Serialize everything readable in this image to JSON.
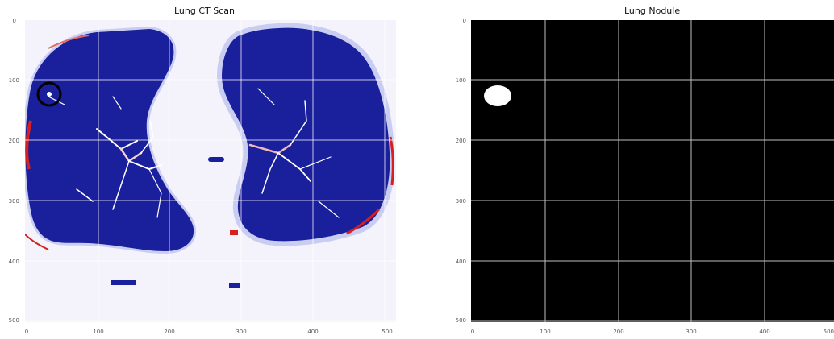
{
  "panels": [
    {
      "title": "Lung CT Scan",
      "image": "lung-ct-slice",
      "x_ticks": [
        "0",
        "100",
        "200",
        "300",
        "400",
        "500"
      ],
      "y_ticks": [
        "0",
        "100",
        "200",
        "300",
        "400",
        "500"
      ],
      "nodule_marker": {
        "x": 37,
        "y": 124,
        "color": "#000000"
      },
      "colors": {
        "lung": "#1a1f9c",
        "background": "#f3f2fb",
        "vessel": "#ffffff",
        "edge": "#d62020"
      }
    },
    {
      "title": "Lung Nodule",
      "image": "nodule-mask",
      "x_ticks": [
        "0",
        "100",
        "200",
        "300",
        "400",
        "500"
      ],
      "y_ticks": [
        "0",
        "100",
        "200",
        "300",
        "400",
        "500"
      ],
      "nodule": {
        "x": 37,
        "y": 124
      },
      "colors": {
        "mask": "#000000",
        "nodule": "#ffffff",
        "grid": "#bfbfbf"
      }
    }
  ]
}
